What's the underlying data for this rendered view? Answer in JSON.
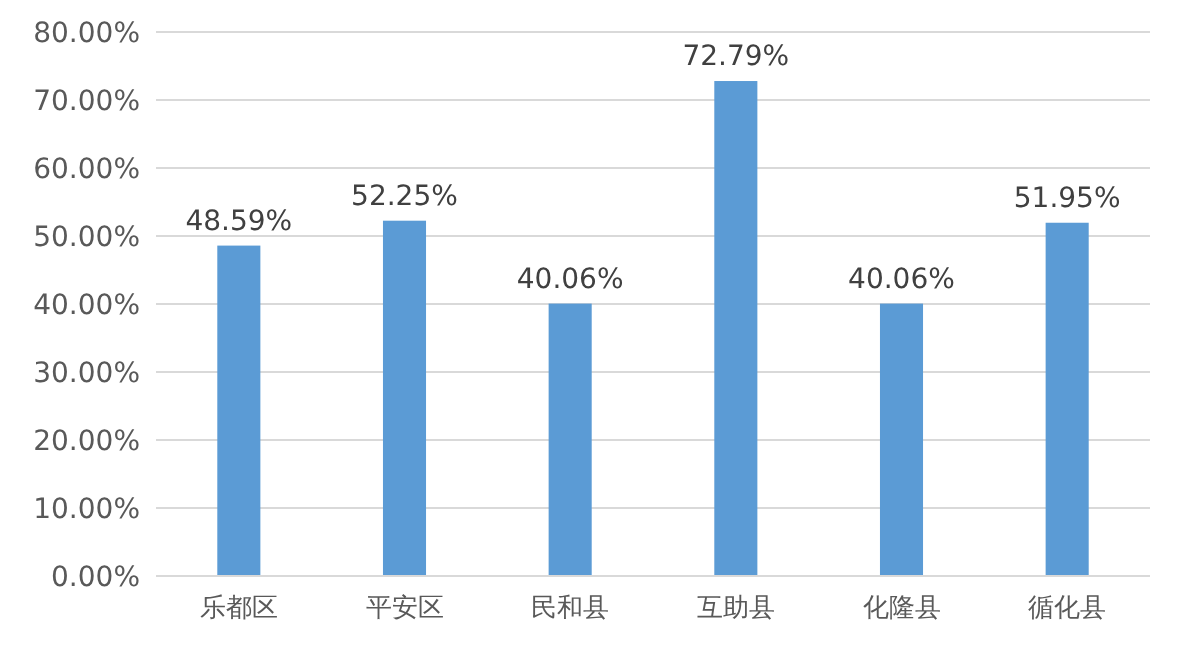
{
  "chart_data": {
    "type": "bar",
    "categories": [
      "乐都区",
      "平安区",
      "民和县",
      "互助县",
      "化隆县",
      "循化县"
    ],
    "values": [
      48.59,
      52.25,
      40.06,
      72.79,
      40.06,
      51.95
    ],
    "value_labels": [
      "48.59%",
      "52.25%",
      "40.06%",
      "72.79%",
      "40.06%",
      "51.95%"
    ],
    "color": "#5b9bd5",
    "ylim": [
      0,
      80
    ],
    "yticks": [
      {
        "value": 0,
        "label": "0.00%"
      },
      {
        "value": 10,
        "label": "10.00%"
      },
      {
        "value": 20,
        "label": "20.00%"
      },
      {
        "value": 30,
        "label": "30.00%"
      },
      {
        "value": 40,
        "label": "40.00%"
      },
      {
        "value": 50,
        "label": "50.00%"
      },
      {
        "value": 60,
        "label": "60.00%"
      },
      {
        "value": 70,
        "label": "70.00%"
      },
      {
        "value": 80,
        "label": "80.00%"
      }
    ],
    "grid": "y"
  }
}
